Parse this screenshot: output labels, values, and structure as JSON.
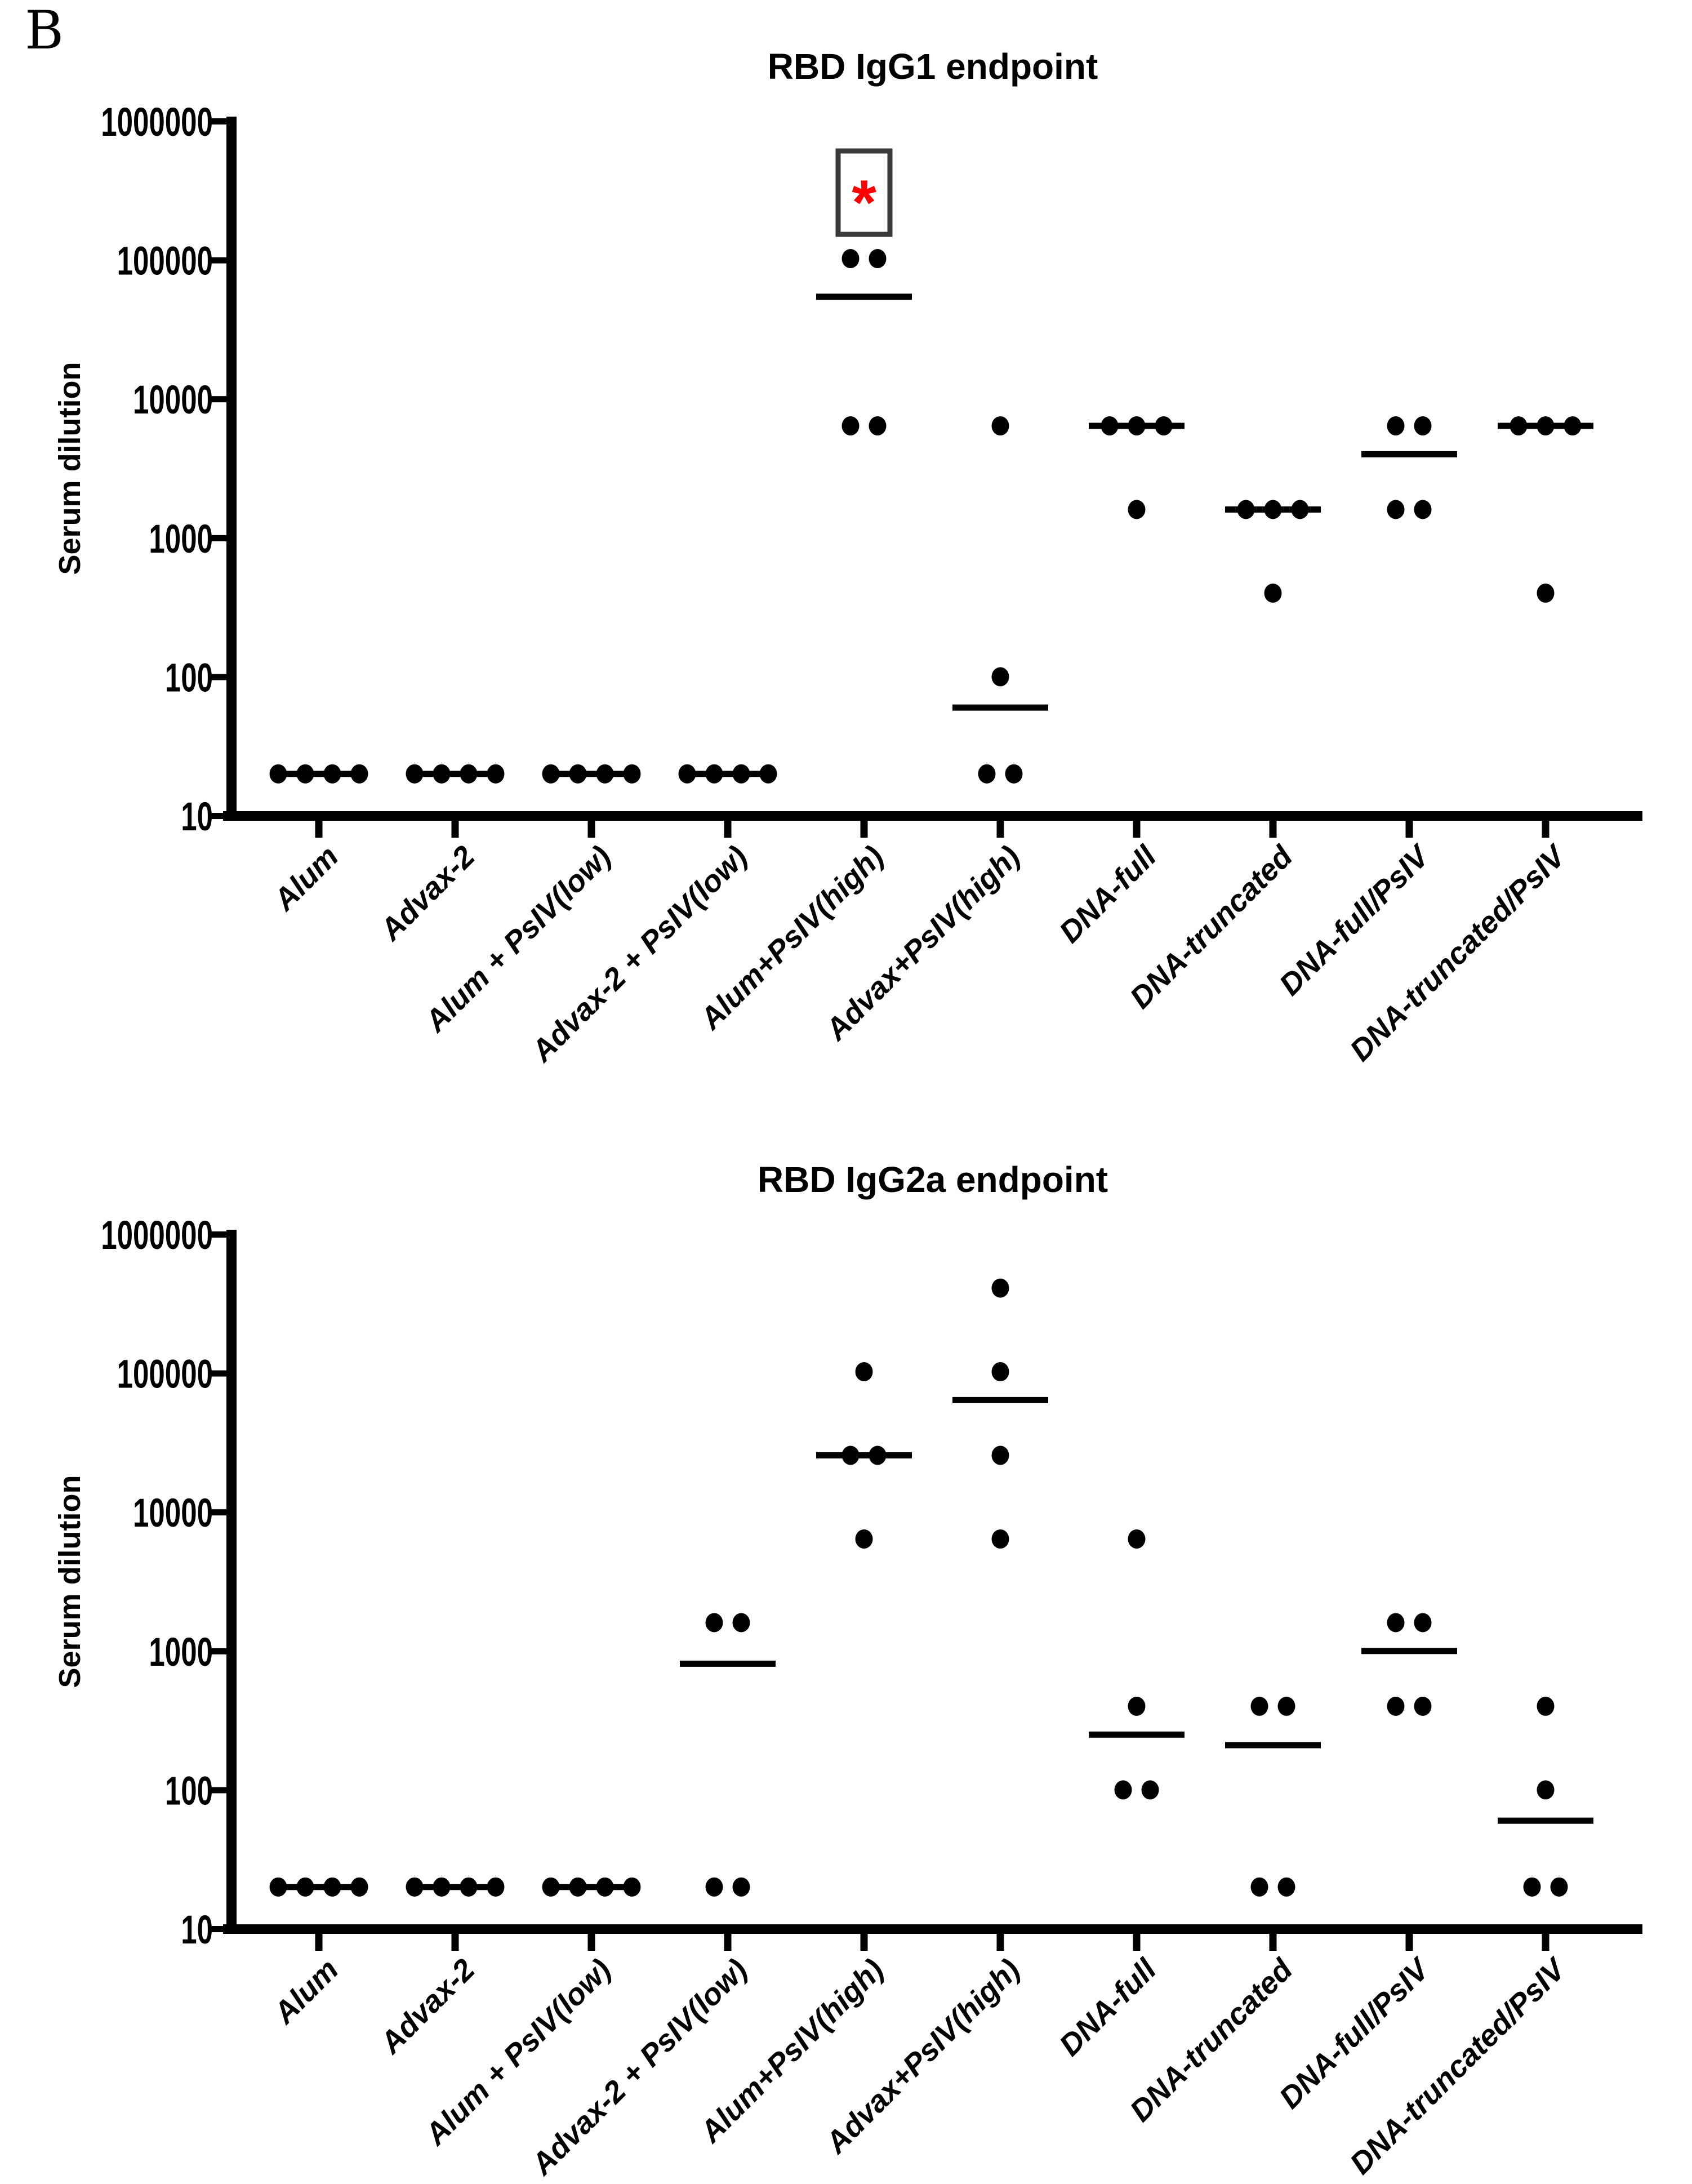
{
  "panel_label": "B",
  "colors": {
    "background": "#ffffff",
    "points": "#000000",
    "axis": "#000000",
    "annotation_box": "#3a3a3a",
    "significance_star": "#ff0000"
  },
  "chart_data": [
    {
      "type": "scatter",
      "title": "RBD IgG1 endpoint",
      "ylabel": "Serum dilution",
      "yscale": "log",
      "ylim": [
        10,
        1000000
      ],
      "grid": false,
      "ytick_labels": [
        "10",
        "100",
        "1000",
        "10000",
        "100000",
        "1000000"
      ],
      "categories": [
        "Alum",
        "Advax-2",
        "Alum + PsIV(low)",
        "Advax-2 + PsIV(low)",
        "Alum+PsIV(high)",
        "Advax+PsIV(high)",
        "DNA-full",
        "DNA-truncated",
        "DNA-full/PsIV",
        "DNA-truncated/PsIV"
      ],
      "groups": [
        {
          "category": "Alum",
          "values": [
            20,
            20,
            20,
            20
          ],
          "median": 20
        },
        {
          "category": "Advax-2",
          "values": [
            20,
            20,
            20,
            20
          ],
          "median": 20
        },
        {
          "category": "Alum + PsIV(low)",
          "values": [
            20,
            20,
            20,
            20
          ],
          "median": 20
        },
        {
          "category": "Advax-2 + PsIV(low)",
          "values": [
            20,
            20,
            20,
            20
          ],
          "median": 20
        },
        {
          "category": "Alum+PsIV(high)",
          "values": [
            102400,
            102400,
            6400,
            6400
          ],
          "median": 54400
        },
        {
          "category": "Advax+PsIV(high)",
          "values": [
            6400,
            100,
            20,
            20
          ],
          "median": 60
        },
        {
          "category": "DNA-full",
          "values": [
            6400,
            6400,
            6400,
            1600
          ],
          "median": 6400
        },
        {
          "category": "DNA-truncated",
          "values": [
            1600,
            1600,
            1600,
            400
          ],
          "median": 1600
        },
        {
          "category": "DNA-full/PsIV",
          "values": [
            6400,
            6400,
            1600,
            1600
          ],
          "median": 4000
        },
        {
          "category": "DNA-truncated/PsIV",
          "values": [
            6400,
            6400,
            6400,
            400
          ],
          "median": 6400
        }
      ],
      "annotations": [
        {
          "target": "Alum+PsIV(high)",
          "symbol": "*",
          "symbol_color": "#ff0000",
          "boxed": true
        }
      ]
    },
    {
      "type": "scatter",
      "title": "RBD IgG2a endpoint",
      "ylabel": "Serum dilution",
      "yscale": "log",
      "ylim": [
        10,
        1000000
      ],
      "grid": false,
      "ytick_labels": [
        "10",
        "100",
        "1000",
        "10000",
        "100000",
        "1000000"
      ],
      "categories": [
        "Alum",
        "Advax-2",
        "Alum + PsIV(low)",
        "Advax-2 + PsIV(low)",
        "Alum+PsIV(high)",
        "Advax+PsIV(high)",
        "DNA-full",
        "DNA-truncated",
        "DNA-full/PsIV",
        "DNA-truncated/PsIV"
      ],
      "groups": [
        {
          "category": "Alum",
          "values": [
            20,
            20,
            20,
            20
          ],
          "median": 20
        },
        {
          "category": "Advax-2",
          "values": [
            20,
            20,
            20,
            20
          ],
          "median": 20
        },
        {
          "category": "Alum + PsIV(low)",
          "values": [
            20,
            20,
            20,
            20
          ],
          "median": 20
        },
        {
          "category": "Advax-2 + PsIV(low)",
          "values": [
            1600,
            1600,
            20,
            20
          ],
          "median": 810
        },
        {
          "category": "Alum+PsIV(high)",
          "values": [
            102400,
            25600,
            25600,
            6400
          ],
          "median": 25600
        },
        {
          "category": "Advax+PsIV(high)",
          "values": [
            409600,
            102400,
            25600,
            6400
          ],
          "median": 64000
        },
        {
          "category": "DNA-full",
          "values": [
            6400,
            400,
            100,
            100
          ],
          "median": 250
        },
        {
          "category": "DNA-truncated",
          "values": [
            400,
            400,
            20,
            20
          ],
          "median": 210
        },
        {
          "category": "DNA-full/PsIV",
          "values": [
            1600,
            1600,
            400,
            400
          ],
          "median": 1000
        },
        {
          "category": "DNA-truncated/PsIV",
          "values": [
            400,
            100,
            20,
            20
          ],
          "median": 60
        }
      ],
      "annotations": []
    }
  ]
}
